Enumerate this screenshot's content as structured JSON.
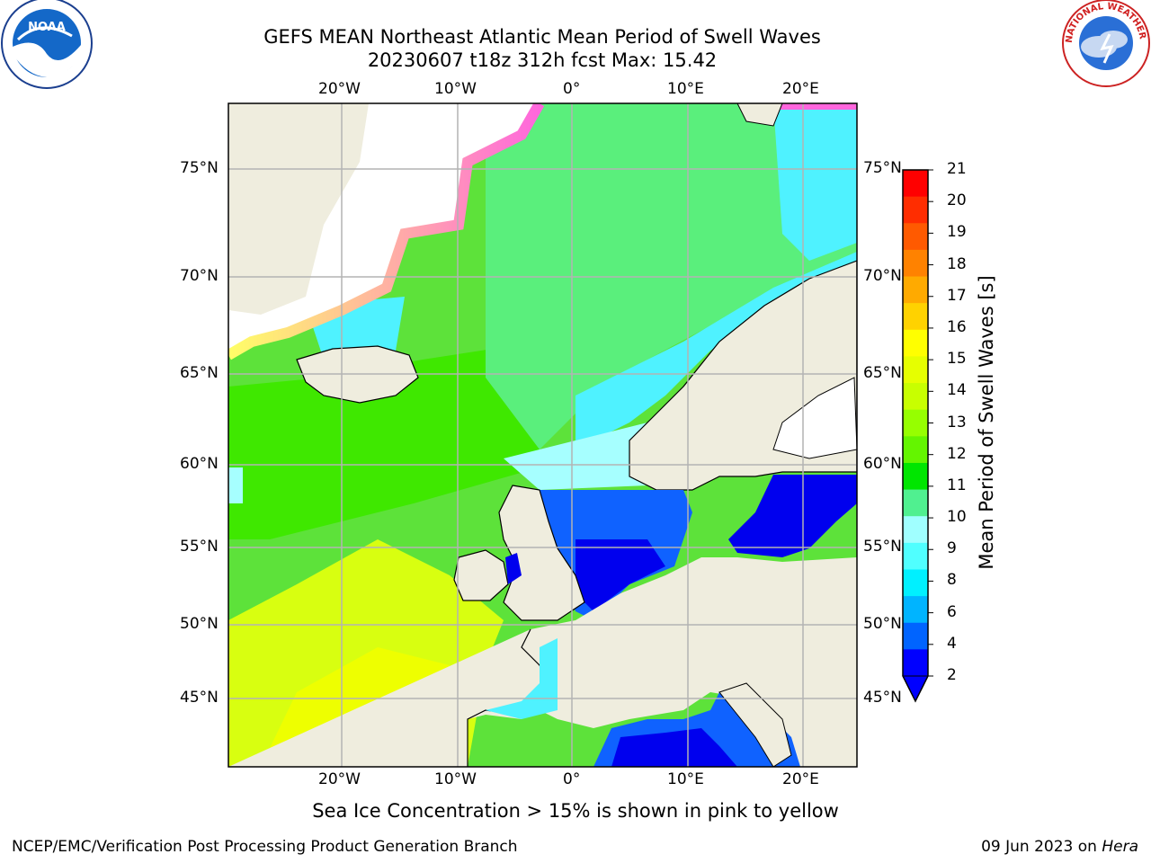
{
  "header": {
    "title_line1": "GEFS MEAN Northeast Atlantic Mean Period of Swell Waves",
    "title_line2": "20230607 t18z 312h fcst   Max: 15.42"
  },
  "axes": {
    "lon_ticks": [
      "20°W",
      "10°W",
      "0°",
      "10°E",
      "20°E"
    ],
    "lat_ticks": [
      "75°N",
      "70°N",
      "65°N",
      "60°N",
      "55°N",
      "50°N",
      "45°N"
    ]
  },
  "colorbar": {
    "title": "Mean Period of Swell Waves [s]",
    "labels": [
      "21",
      "20",
      "19",
      "18",
      "17",
      "16",
      "15",
      "14",
      "13",
      "12",
      "11",
      "10",
      "9",
      "8",
      "6",
      "4",
      "2"
    ],
    "colors": [
      "#ff0000",
      "#ff2d00",
      "#ff5a00",
      "#ff8200",
      "#ffaa00",
      "#ffd200",
      "#ffff00",
      "#e6ff00",
      "#c8ff00",
      "#96ff00",
      "#64f500",
      "#00e600",
      "#50f090",
      "#a0ffff",
      "#50ffff",
      "#00f0ff",
      "#00b4ff",
      "#0064ff",
      "#0000ff"
    ]
  },
  "map": {
    "land_color": "#efedde",
    "ocean_colors": {
      "cyan": "#4ff2ff",
      "light_cyan": "#a6ffff",
      "green": "#33e600",
      "light_green": "#5aef7c",
      "yellow_green": "#b0ff10",
      "yellow": "#eeff00",
      "blue": "#0000ee",
      "mid_blue": "#0f62ff",
      "ice_pink": "#ff66dd",
      "ice_yellow": "#ffff66"
    }
  },
  "note": "Sea Ice Concentration > 15% is shown in pink to yellow",
  "footer": {
    "left": "NCEP/EMC/Verification Post Processing Product Generation Branch",
    "right_date": "09 Jun 2023 on ",
    "right_machine": "Hera"
  },
  "logos": {
    "noaa_text": "NOAA",
    "nws_text": "NATIONAL WEATHER SERVICE"
  }
}
